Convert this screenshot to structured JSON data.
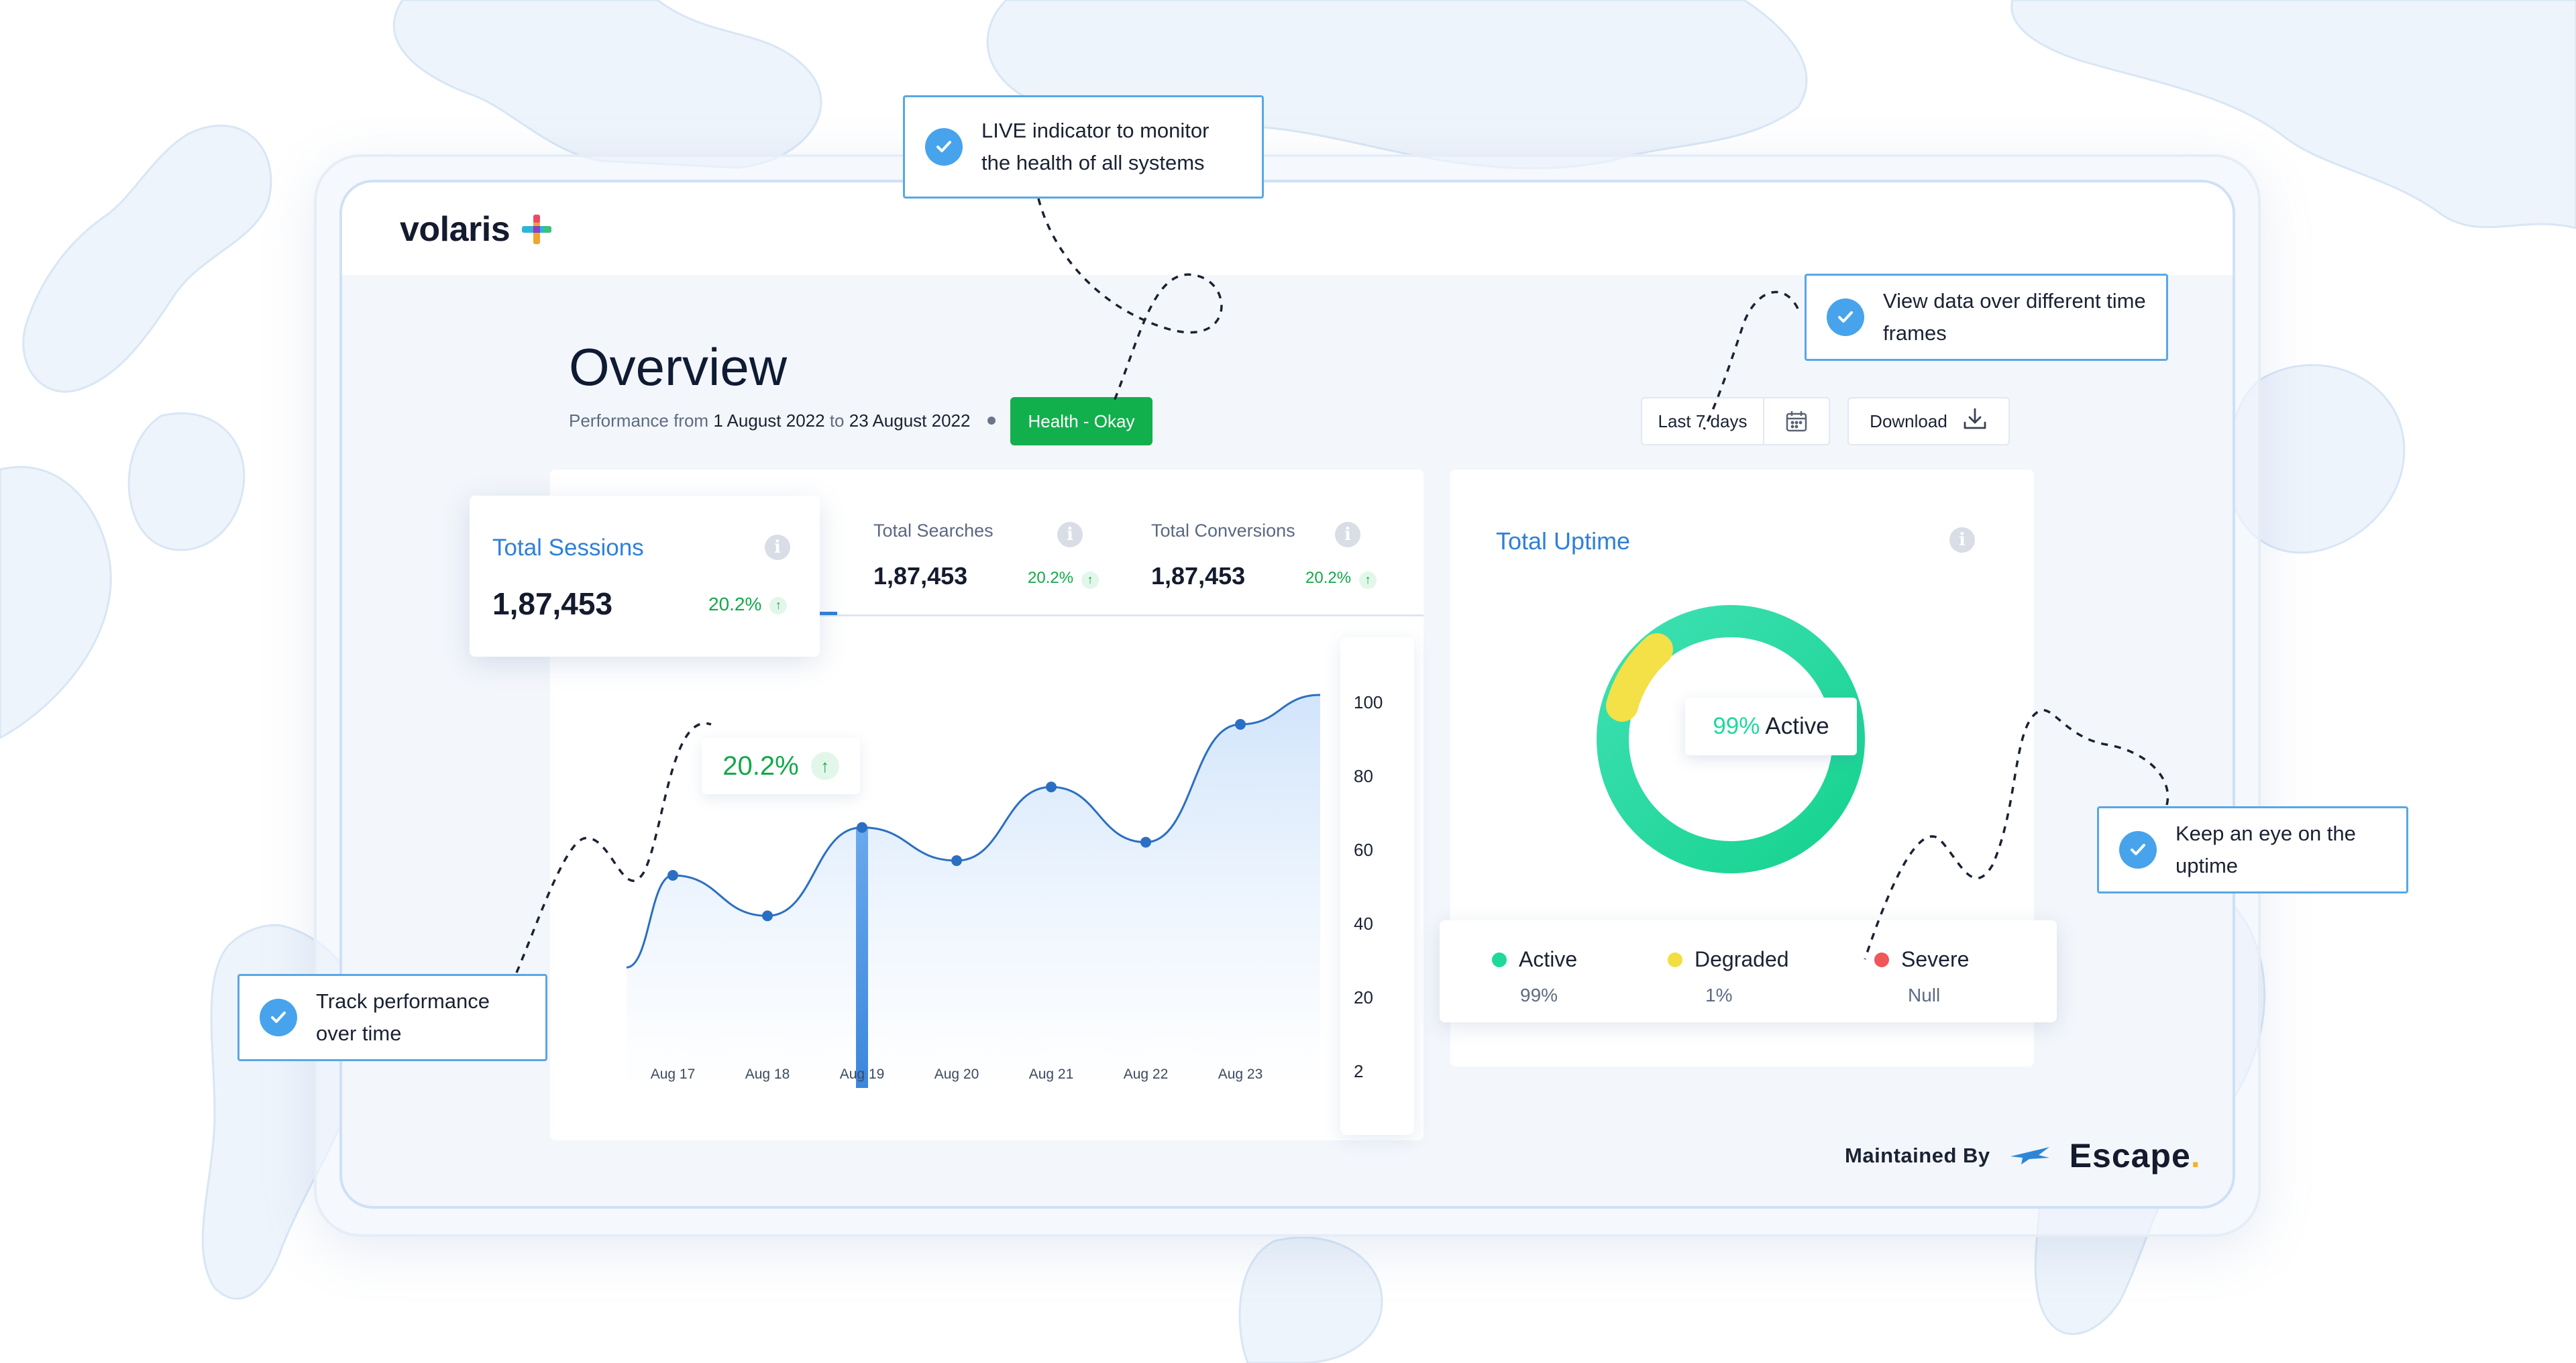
{
  "brand": {
    "app_name": "volaris",
    "maintainer_label": "Maintained By",
    "maintainer_name": "Escape"
  },
  "header": {
    "title": "Overview",
    "performance_prefix": "Performance from",
    "date_from": "1 August 2022",
    "performance_to": "to",
    "date_to": "23 August 2022",
    "health_badge": "Health - Okay",
    "range_label": "Last 7 days",
    "download_label": "Download"
  },
  "stats": {
    "sessions": {
      "name": "Total Sessions",
      "value": "1,87,453",
      "change": "20.2%"
    },
    "searches": {
      "name": "Total Searches",
      "value": "1,87,453",
      "change": "20.2%"
    },
    "conversions": {
      "name": "Total Conversions",
      "value": "1,87,453",
      "change": "20.2%"
    }
  },
  "chart_badge": "20.2%",
  "chart_data": {
    "type": "area",
    "x": [
      "Aug 17",
      "Aug 18",
      "Aug 19",
      "Aug 20",
      "Aug 21",
      "Aug 22",
      "Aug 23"
    ],
    "y_ticks": [
      "100",
      "80",
      "60",
      "40",
      "20",
      "2"
    ],
    "values": [
      51,
      40,
      64,
      55,
      75,
      60,
      92
    ],
    "highlighted": "Aug 19",
    "ylim": [
      2,
      100
    ]
  },
  "uptime": {
    "title": "Total Uptime",
    "donut_pct": "99%",
    "donut_label": "Active",
    "legend": [
      {
        "label": "Active",
        "value": "99%",
        "color": "#1ed99a"
      },
      {
        "label": "Degraded",
        "value": "1%",
        "color": "#f2df3f"
      },
      {
        "label": "Severe",
        "value": "Null",
        "color": "#f0565a"
      }
    ]
  },
  "callouts": {
    "live": "LIVE indicator to monitor the health of all systems",
    "timeframes": "View data over different time frames",
    "uptime": "Keep an eye on the uptime",
    "performance": "Track performance over time"
  }
}
